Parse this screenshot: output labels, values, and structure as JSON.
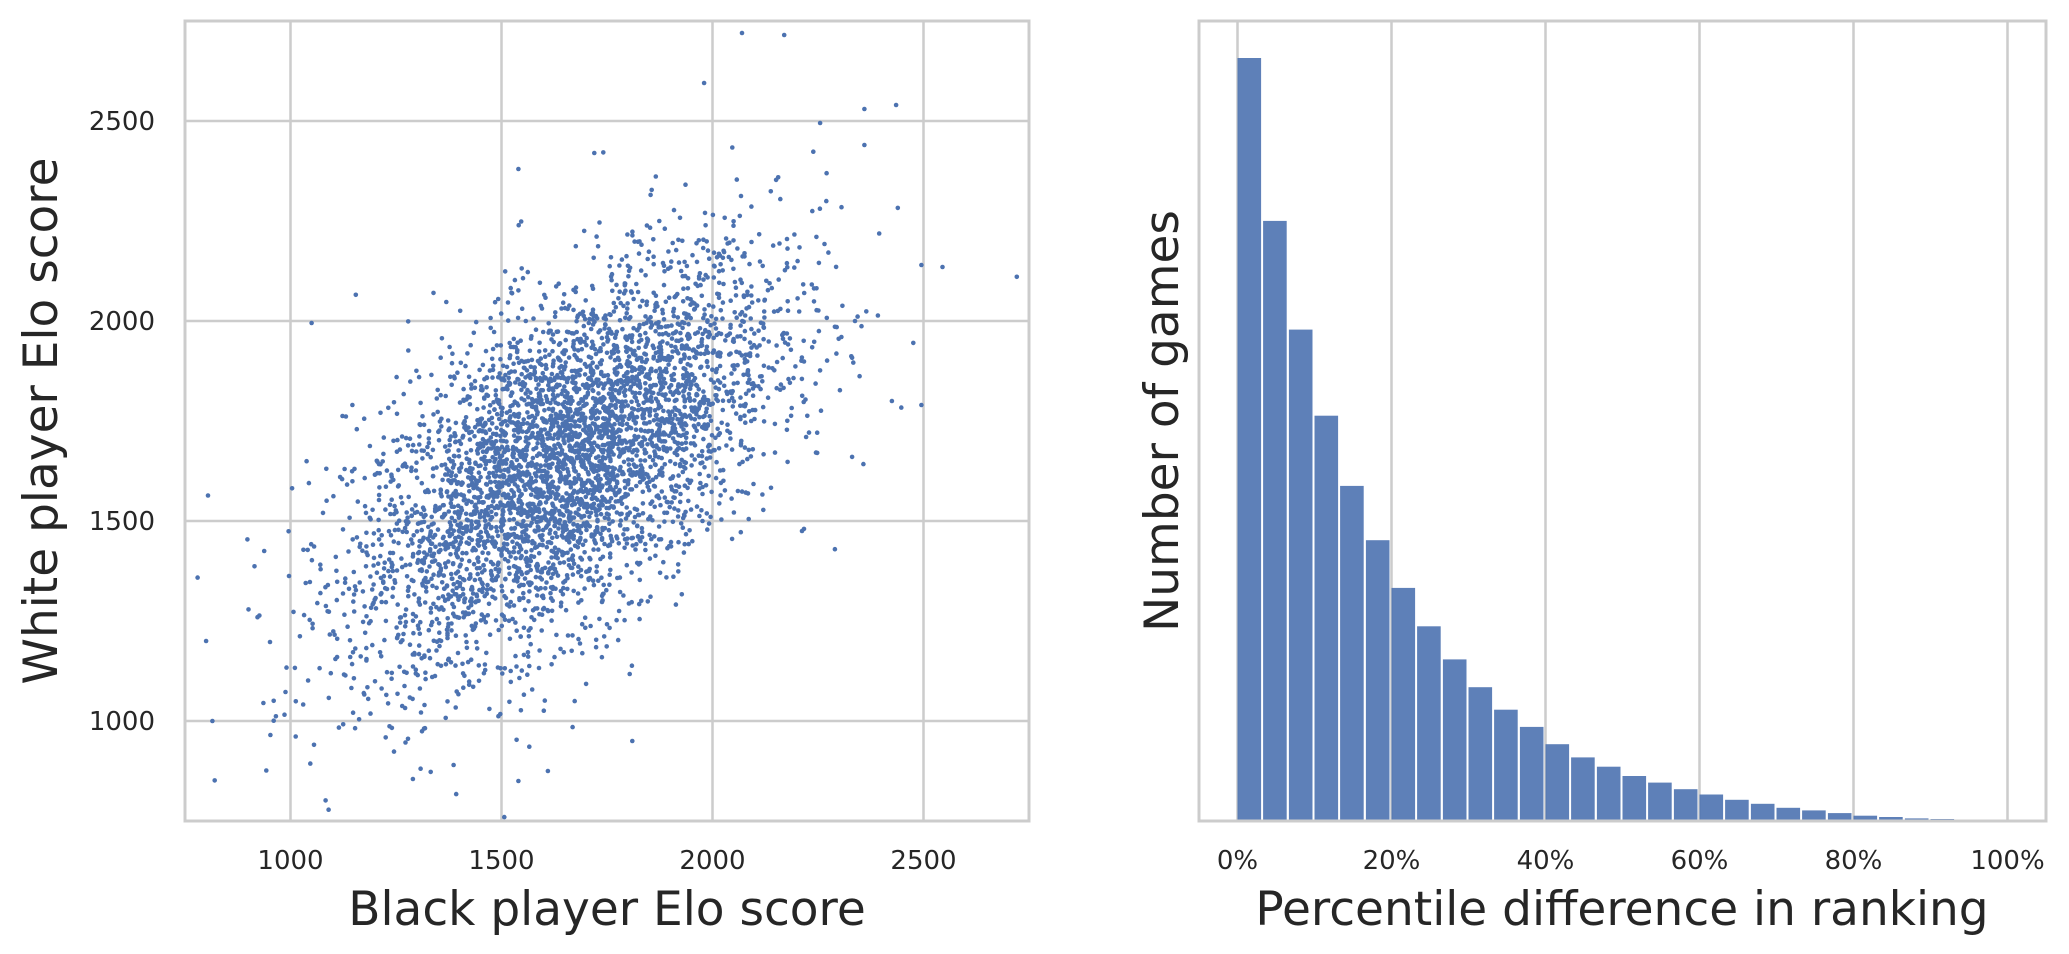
{
  "chart_data": [
    {
      "type": "scatter",
      "xlabel": "Black player Elo score",
      "ylabel": "White player Elo score",
      "xlim": [
        750,
        2750
      ],
      "ylim": [
        750,
        2750
      ],
      "xticks": [
        1000,
        1500,
        2000,
        2500
      ],
      "xtick_labels": [
        "1000",
        "1500",
        "2000",
        "2500"
      ],
      "yticks": [
        1000,
        1500,
        2000,
        2500
      ],
      "ytick_labels": [
        "1000",
        "1500",
        "2000",
        "2500"
      ],
      "grid": true,
      "series": [
        {
          "color": "#4c72b0",
          "distribution": {
            "n_points": 4500,
            "x_mean": 1650,
            "x_std": 250,
            "y_mean": 1650,
            "y_std": 250,
            "correlation": 0.6
          },
          "notable_points": [
            [
              2070,
              2720
            ],
            [
              2170,
              2715
            ],
            [
              1980,
              2595
            ],
            [
              2435,
              2540
            ],
            [
              2360,
              2530
            ],
            [
              2255,
              2495
            ],
            [
              2360,
              2440
            ],
            [
              1540,
              2380
            ],
            [
              1720,
              2420
            ],
            [
              2495,
              2140
            ],
            [
              2545,
              2135
            ],
            [
              2495,
              1790
            ],
            [
              2425,
              1800
            ],
            [
              800,
              1200
            ],
            [
              815,
              1000
            ],
            [
              1540,
              850
            ],
            [
              1290,
              855
            ],
            [
              1610,
              875
            ],
            [
              1810,
              950
            ],
            [
              1050,
              1995
            ]
          ]
        }
      ]
    },
    {
      "type": "bar",
      "xlabel": "Percentile difference in ranking",
      "ylabel": "Number of games",
      "xlim": [
        -0.05,
        1.05
      ],
      "xticks": [
        0,
        0.2,
        0.4,
        0.6,
        0.8,
        1.0
      ],
      "xtick_labels": [
        "0%",
        "20%",
        "40%",
        "60%",
        "80%",
        "100%"
      ],
      "yticks": [],
      "bin_width": 0.0333,
      "color": "#4c72b0",
      "grid": "x-only",
      "bins": [
        0,
        0.0333,
        0.0667,
        0.1,
        0.1333,
        0.1667,
        0.2,
        0.2333,
        0.2667,
        0.3,
        0.3333,
        0.3667,
        0.4,
        0.4333,
        0.4667,
        0.5,
        0.5333,
        0.5667,
        0.6,
        0.6333,
        0.6667,
        0.7,
        0.7333,
        0.7667,
        0.8,
        0.8333,
        0.8667,
        0.9,
        0.9333,
        0.9667
      ],
      "values": [
        576,
        453,
        371,
        306,
        253,
        212,
        176,
        147,
        122,
        101,
        84,
        71,
        58,
        48,
        41,
        34,
        29,
        24,
        20,
        16,
        13,
        10,
        8,
        6,
        4,
        3,
        2,
        1.5,
        1,
        0.5
      ]
    }
  ]
}
